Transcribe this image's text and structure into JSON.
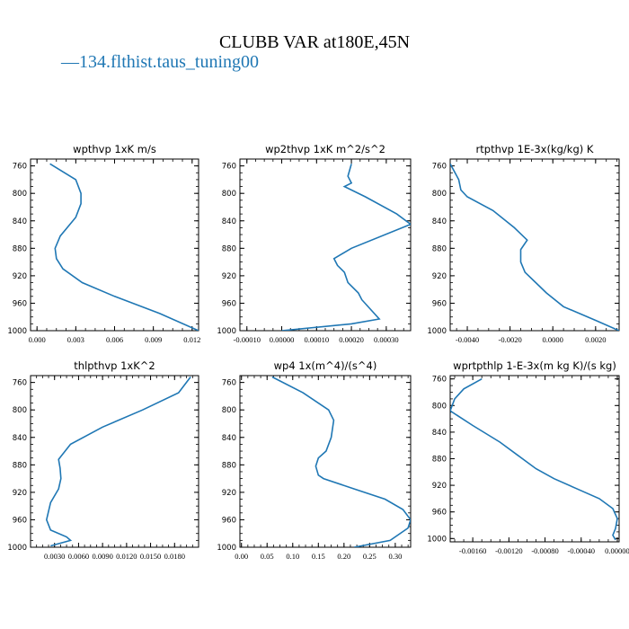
{
  "title": "CLUBB VAR at180E,45N",
  "legend": {
    "marker": "—",
    "label": "134.flthist.taus_tuning00",
    "color": "#1f77b4"
  },
  "chart_data": [
    {
      "type": "line",
      "title": "wpthvp  1xK m/s",
      "ylim": [
        1000,
        750
      ],
      "xlim": [
        -0.0005,
        0.0125
      ],
      "yticks": [
        "760",
        "800",
        "840",
        "880",
        "920",
        "960",
        "1000"
      ],
      "xticks": [
        "0.000",
        "0.003",
        "0.006",
        "0.009",
        "0.012"
      ],
      "series": [
        {
          "x": [
            0.001,
            0.003,
            0.0034,
            0.0034,
            0.003,
            0.0018,
            0.0014,
            0.0015,
            0.002,
            0.0035,
            0.006,
            0.0095,
            0.0125
          ],
          "y": [
            757,
            780,
            800,
            815,
            835,
            862,
            880,
            895,
            910,
            930,
            950,
            975,
            1000
          ]
        }
      ]
    },
    {
      "type": "line",
      "title": "wp2thvp  1xK m^2/s^2",
      "ylim": [
        1000,
        750
      ],
      "xlim": [
        -0.00012,
        0.00037
      ],
      "yticks": [
        "760",
        "800",
        "840",
        "880",
        "920",
        "960",
        "1000"
      ],
      "xticks": [
        "-0.00010",
        "0.00000",
        "0.00010",
        "0.00020",
        "0.00030"
      ],
      "series": [
        {
          "x": [
            0.0002,
            0.00019,
            0.0002,
            0.00018,
            0.00024,
            0.00033,
            0.00037,
            0.0002,
            0.00015,
            0.00016,
            0.00018,
            0.00019,
            0.00022,
            0.00023,
            0.00028,
            0.0002,
            0.0
          ],
          "y": [
            757,
            775,
            785,
            790,
            805,
            830,
            845,
            880,
            895,
            905,
            915,
            930,
            945,
            955,
            983,
            990,
            1000
          ]
        }
      ]
    },
    {
      "type": "line",
      "title": "rtpthvp  1E-3x(kg/kg) K",
      "ylim": [
        1000,
        750
      ],
      "xlim": [
        -0.0048,
        0.0031
      ],
      "yticks": [
        "760",
        "800",
        "840",
        "880",
        "920",
        "960",
        "1000"
      ],
      "xticks": [
        "-0.0040",
        "-0.0020",
        "0.0000",
        "0.0020"
      ],
      "series": [
        {
          "x": [
            -0.0048,
            -0.0044,
            -0.0043,
            -0.004,
            -0.0028,
            -0.0018,
            -0.0012,
            -0.0015,
            -0.0015,
            -0.0013,
            -0.0008,
            -0.0003,
            0.0005,
            0.002,
            0.0031
          ],
          "y": [
            757,
            780,
            795,
            805,
            825,
            850,
            868,
            882,
            900,
            915,
            930,
            945,
            965,
            985,
            1000
          ]
        }
      ]
    },
    {
      "type": "line",
      "title": "thlpthvp  1xK^2",
      "ylim": [
        1000,
        750
      ],
      "xlim": [
        0,
        0.021
      ],
      "yticks": [
        "760",
        "800",
        "840",
        "880",
        "920",
        "960",
        "1000"
      ],
      "xticks": [
        "0.0030",
        "0.0060",
        "0.0090",
        "0.0120",
        "0.0150",
        "0.0180"
      ],
      "series": [
        {
          "x": [
            0.02,
            0.0185,
            0.014,
            0.009,
            0.005,
            0.0035,
            0.0037,
            0.0038,
            0.0035,
            0.0025,
            0.002,
            0.0025,
            0.0045,
            0.005,
            0.0025
          ],
          "y": [
            752,
            775,
            800,
            825,
            850,
            872,
            885,
            900,
            915,
            935,
            960,
            975,
            985,
            990,
            998
          ]
        }
      ]
    },
    {
      "type": "line",
      "title": "wp4  1x(m^4)/(s^4)",
      "ylim": [
        1000,
        750
      ],
      "xlim": [
        -0.003,
        0.33
      ],
      "yticks": [
        "760",
        "800",
        "840",
        "880",
        "920",
        "960",
        "1000"
      ],
      "xticks": [
        "0.00",
        "0.05",
        "0.10",
        "0.15",
        "0.20",
        "0.25",
        "0.30"
      ],
      "series": [
        {
          "x": [
            0.06,
            0.12,
            0.17,
            0.18,
            0.175,
            0.165,
            0.15,
            0.145,
            0.15,
            0.16,
            0.22,
            0.28,
            0.315,
            0.33,
            0.325,
            0.29,
            0.22
          ],
          "y": [
            752,
            775,
            800,
            815,
            840,
            860,
            870,
            882,
            895,
            900,
            915,
            930,
            945,
            960,
            972,
            990,
            1000
          ]
        }
      ]
    },
    {
      "type": "line",
      "title": "wprtpthlp  1-E-3x(m kg K)/(s kg)",
      "ylim": [
        1005,
        755
      ],
      "xlim": [
        -0.00185,
        2e-05
      ],
      "yticks": [
        "760",
        "800",
        "840",
        "880",
        "920",
        "960",
        "1000"
      ],
      "xticks": [
        "-0.00160",
        "-0.00120",
        "-0.00080",
        "-0.00040",
        "0.00000"
      ],
      "series": [
        {
          "x": [
            -0.0015,
            -0.0017,
            -0.0018,
            -0.00185,
            -0.0016,
            -0.0013,
            -0.0011,
            -0.0009,
            -0.0007,
            -0.00045,
            -0.0002,
            -5e-05,
            0.0,
            -2e-05,
            -5e-05,
            -2e-05
          ],
          "y": [
            760,
            775,
            790,
            808,
            830,
            855,
            875,
            895,
            910,
            925,
            940,
            955,
            970,
            985,
            995,
            1002
          ]
        }
      ]
    }
  ]
}
